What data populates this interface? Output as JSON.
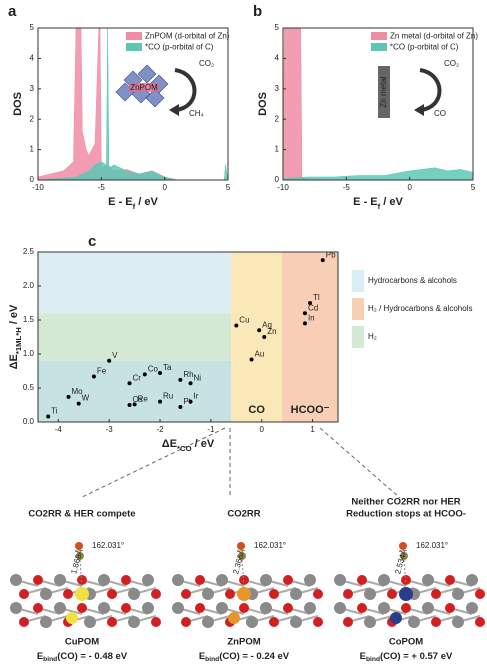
{
  "chart_data": [
    {
      "type": "area",
      "letter": "a",
      "xlabel": [
        "E - E",
        "f",
        " / eV"
      ],
      "ylabel": "DOS",
      "xlim": [
        -10,
        5
      ],
      "ylim": [
        0,
        5
      ],
      "xticks": [
        -10,
        -5,
        0,
        5
      ],
      "yticks": [
        0,
        1,
        2,
        3,
        4,
        5
      ],
      "series": [
        {
          "name": "ZnPOM (d-orbital of Zn)",
          "color": "#f08ca4",
          "x": [
            -10,
            -9,
            -8,
            -7.2,
            -7,
            -6.6,
            -6.5,
            -6.2,
            -6,
            -5.5,
            -5.2,
            -5.1,
            -5,
            -4.5,
            -4,
            -3,
            -2,
            -1,
            0,
            1,
            2,
            3,
            4,
            5
          ],
          "values": [
            0.1,
            0.2,
            0.3,
            0.6,
            5,
            5,
            1.6,
            1,
            0.8,
            1.2,
            5,
            5,
            0.4,
            0.5,
            0.3,
            0.35,
            0.2,
            0.3,
            0.1,
            0,
            0,
            0,
            0,
            0
          ]
        },
        {
          "name": "*CO (p-orbital of C)",
          "color": "#5cc8b4",
          "x": [
            -10,
            -7,
            -6,
            -5.5,
            -5,
            -4.6,
            -4.5,
            -4.4,
            -4,
            -3,
            -2,
            -1,
            0,
            1,
            4.7,
            4.8,
            5
          ],
          "values": [
            0,
            0.1,
            0.3,
            0.5,
            0.6,
            0.5,
            5,
            0.4,
            0.5,
            0.3,
            0.2,
            0.3,
            0.1,
            0,
            0,
            0.5,
            0
          ]
        }
      ],
      "inset_labels": [
        "ZnPOM",
        "CO₂",
        "CH₄"
      ]
    },
    {
      "type": "area",
      "letter": "b",
      "xlabel": [
        "E - E",
        "f",
        " / eV"
      ],
      "ylabel": "DOS",
      "xlim": [
        -10,
        5
      ],
      "ylim": [
        0,
        5
      ],
      "xticks": [
        -10,
        -5,
        0,
        5
      ],
      "yticks": [
        0,
        1,
        2,
        3,
        4,
        5
      ],
      "series": [
        {
          "name": "Zn metal (d-orbital of Zn)",
          "color": "#f08ca4",
          "x": [
            -10,
            -9.9,
            -8.6,
            -8.5,
            -8,
            5
          ],
          "values": [
            0,
            5,
            5,
            0.1,
            0,
            0
          ]
        },
        {
          "name": "*CO (p-orbital of C)",
          "color": "#5cc8b4",
          "x": [
            -10,
            -8,
            -6,
            -4,
            -2,
            0,
            1,
            2,
            3,
            4,
            5
          ],
          "values": [
            0.05,
            0.1,
            0.1,
            0.15,
            0.15,
            0.3,
            0.35,
            0.4,
            0.3,
            0.35,
            0.25
          ]
        }
      ],
      "inset_labels": [
        "Zn metal",
        "CO₂",
        "CO"
      ]
    },
    {
      "type": "scatter",
      "letter": "c",
      "xlabel": [
        "ΔE",
        "*CO",
        " / eV"
      ],
      "ylabel": [
        "ΔE",
        "*1ML*H",
        " / eV"
      ],
      "xlim": [
        -4.4,
        1.5
      ],
      "ylim": [
        0,
        2.5
      ],
      "xticks": [
        -4,
        -3,
        -2,
        -1,
        0,
        1
      ],
      "yticks": [
        {
          "value": 0,
          "label": "0.0"
        },
        0.5,
        {
          "value": 1,
          "label": "1.0"
        },
        1.5,
        {
          "value": 2,
          "label": "2.0"
        },
        2.5
      ],
      "bands": [
        {
          "ylim": [
            1.6,
            2.5
          ],
          "xlim": [
            -4.4,
            -0.6
          ],
          "color": "#dcedf4"
        },
        {
          "ylim": [
            0.9,
            1.6
          ],
          "xlim": [
            -4.4,
            -0.6
          ],
          "color": "#d5ead5"
        },
        {
          "ylim": [
            0,
            0.9
          ],
          "xlim": [
            -4.4,
            -0.6
          ],
          "color": "#c6e2e2"
        }
      ],
      "columns": [
        {
          "label": "CO",
          "xlim": [
            -0.6,
            0.4
          ],
          "color": "#fbe8b8"
        },
        {
          "label": "HCOO⁻",
          "xlim": [
            0.4,
            1.5
          ],
          "color": "#f8cfb6"
        }
      ],
      "legend": [
        {
          "label": "Hydrocarbons & alcohols",
          "color": "#dcedf4"
        },
        {
          "label": "H₂ / Hydrocarbons & alcohols",
          "color": "#f8cfb6"
        },
        {
          "label": "H₂",
          "color": "#d5ead5"
        }
      ],
      "points": {
        "labels": [
          "Pb",
          "Tl",
          "Cd",
          "In",
          "Cu",
          "Ag",
          "Zn",
          "Au",
          "V",
          "Fe",
          "Co",
          "Ta",
          "Cr",
          "Rh",
          "Ni",
          "Mo",
          "W",
          "Os",
          "Re",
          "Ru",
          "Ir",
          "Pt",
          "Ti"
        ],
        "x": [
          1.2,
          0.95,
          0.85,
          0.85,
          -0.5,
          -0.05,
          0.05,
          -0.2,
          -3,
          -3.3,
          -2.3,
          -2.0,
          -2.6,
          -1.6,
          -1.4,
          -3.8,
          -3.6,
          -2.6,
          -2.5,
          -2.0,
          -1.4,
          -1.6,
          -4.2
        ],
        "y": [
          2.38,
          1.75,
          1.6,
          1.45,
          1.42,
          1.35,
          1.25,
          0.92,
          0.9,
          0.67,
          0.7,
          0.72,
          0.57,
          0.62,
          0.57,
          0.37,
          0.27,
          0.25,
          0.26,
          0.3,
          0.3,
          0.22,
          0.08
        ]
      }
    }
  ],
  "structures": [
    {
      "heading": [
        "CO2RR & HER compete"
      ],
      "angle": "162.031°",
      "distance": "1.869Å",
      "name": "CuPOM",
      "name_color": "#111",
      "metal_color": "#f2e040",
      "energy": [
        "E",
        "bind",
        "(CO) = - 0.48 eV"
      ]
    },
    {
      "heading": [
        "CO2RR"
      ],
      "angle": "162.031°",
      "distance": "2.366Å",
      "name": "ZnPOM",
      "name_color": "#d6302a",
      "metal_color": "#e8962a",
      "energy": [
        "E",
        "bind",
        "(CO) = - 0.24 eV"
      ]
    },
    {
      "heading": [
        "Neither CO2RR nor HER",
        "Reduction stops at HCOO-"
      ],
      "angle": "162.031°",
      "distance": "2.534Å",
      "name": "CoPOM",
      "name_color": "#111",
      "metal_color": "#2a3c8c",
      "energy": [
        "E",
        "bind",
        "(CO) = + 0.57 eV"
      ]
    }
  ]
}
